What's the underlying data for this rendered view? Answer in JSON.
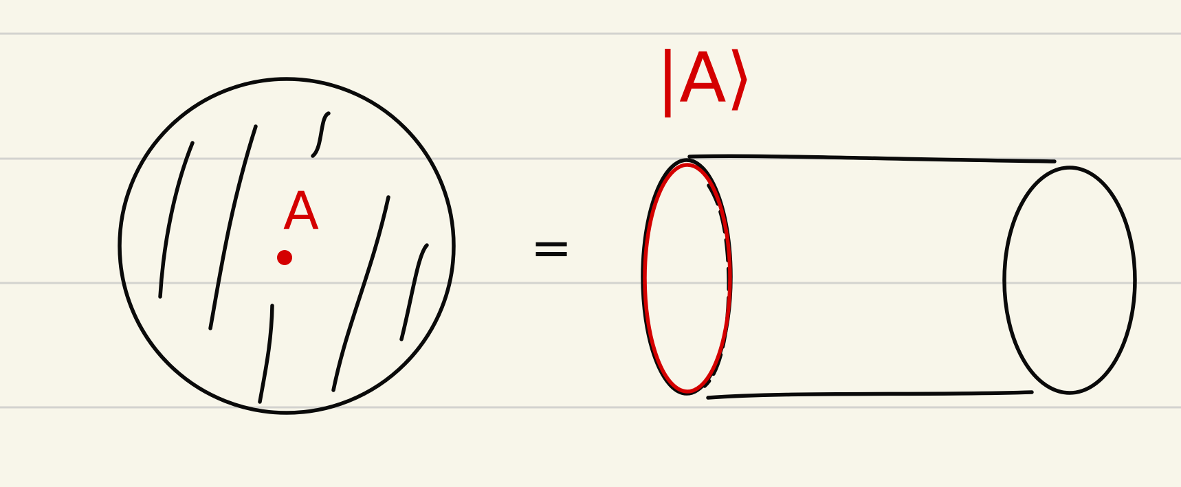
{
  "ket_label": "|A⟩",
  "equals": "=",
  "center_label": "A"
}
